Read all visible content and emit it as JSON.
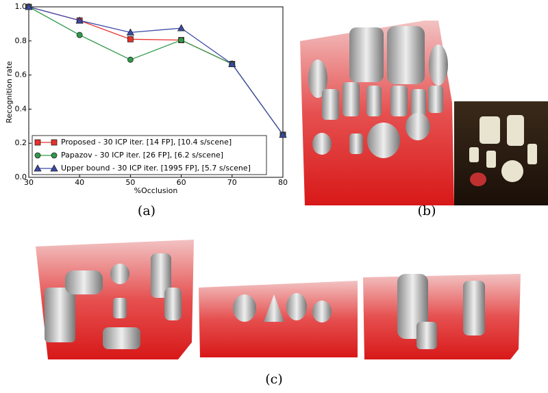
{
  "chart_data": {
    "type": "line",
    "xlabel": "%Occlusion",
    "ylabel": "Recognition rate",
    "x": [
      30,
      40,
      50,
      60,
      70,
      80
    ],
    "xlim": [
      30,
      80
    ],
    "xticks": [
      30,
      40,
      50,
      60,
      70,
      80
    ],
    "ylim": [
      0,
      1
    ],
    "yticks": [
      {
        "value": 0,
        "label": "0.0"
      },
      0.2,
      0.4,
      0.6,
      0.8,
      {
        "value": 1,
        "label": "1.0"
      }
    ],
    "legend": "lower left",
    "series": [
      {
        "name": "Proposed - 30 ICP iter. [14 FP], [10.4 s/scene]",
        "color": "#e8302a",
        "marker": "square",
        "values": [
          1.0,
          0.92,
          0.81,
          0.805,
          0.665,
          0.25
        ]
      },
      {
        "name": "Papazov - 30 ICP iter. [26 FP], [6.2 s/scene]",
        "color": "#2e9a4a",
        "marker": "circle",
        "values": [
          1.0,
          0.835,
          0.69,
          0.805,
          0.665,
          0.25
        ]
      },
      {
        "name": "Upper bound - 30 ICP iter. [1995 FP], [5.7 s/scene]",
        "color": "#3a4aa8",
        "marker": "triangle",
        "values": [
          1.0,
          0.92,
          0.85,
          0.875,
          0.665,
          0.25
        ]
      }
    ]
  },
  "captions": [
    "(a)",
    "(b)",
    "(c)"
  ]
}
